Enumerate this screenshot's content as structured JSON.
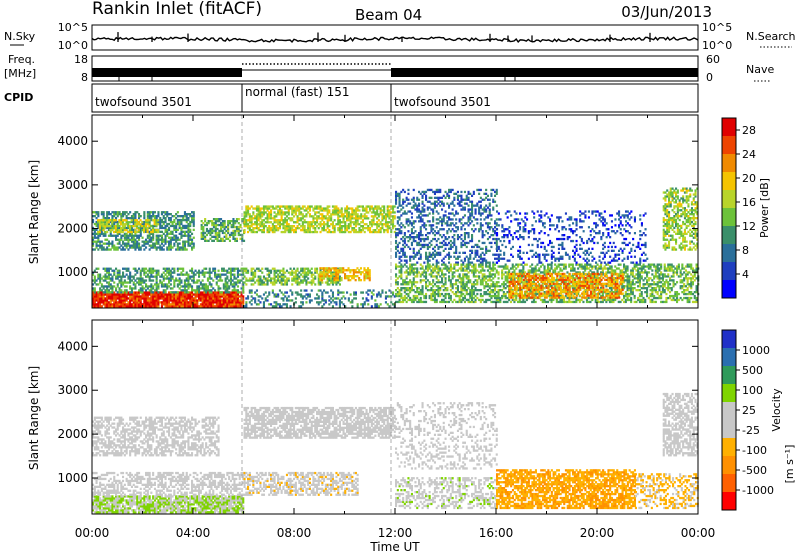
{
  "header": {
    "title": "Rankin Inlet (fitACF)",
    "beam": "Beam 04",
    "date": "03/Jun/2013"
  },
  "nsky_panel": {
    "label": "N.Sky",
    "left_ticks": [
      "10^5",
      "10^0"
    ],
    "right_label": "N.Search",
    "right_ticks": [
      "10^5",
      "10^0"
    ]
  },
  "freq_panel": {
    "label_line1": "Freq.",
    "label_line2": "[MHz]",
    "left_ticks": [
      "18",
      "8"
    ],
    "right_label": "Nave",
    "right_ticks": [
      "60",
      "0"
    ]
  },
  "cpid_panel": {
    "label": "CPID",
    "segments": [
      {
        "label": "twofsound 3501",
        "start_hour": 0,
        "end_hour": 6
      },
      {
        "label": "normal (fast) 151",
        "start_hour": 6,
        "end_hour": 12
      },
      {
        "label": "twofsound 3501",
        "start_hour": 12,
        "end_hour": 24
      }
    ]
  },
  "x_axis": {
    "label": "Time UT",
    "ticks": [
      "00:00",
      "04:00",
      "08:00",
      "12:00",
      "16:00",
      "20:00",
      "00:00"
    ],
    "tick_hours": [
      0,
      4,
      8,
      12,
      16,
      20,
      24
    ]
  },
  "chart_data": [
    {
      "type": "heatmap",
      "ylabel": "Slant Range [km]",
      "yticks": [
        1000,
        2000,
        3000,
        4000
      ],
      "ylim": [
        180,
        4600
      ],
      "xlim_hours": [
        0,
        24
      ],
      "colorbar_label": "Power [dB]",
      "colorbar_ticks": [
        "28",
        "24",
        "20",
        "16",
        "12",
        "8",
        "4"
      ],
      "colorbar_ticks_values": [
        28,
        24,
        20,
        16,
        12,
        8,
        4
      ],
      "colorbar_range": [
        0,
        30
      ],
      "colors": [
        "#0000ff",
        "#1f3fbf",
        "#2a6f9a",
        "#3a8f6a",
        "#6cc23a",
        "#b8d42a",
        "#f5c400",
        "#f08a00",
        "#ee4400",
        "#e00000"
      ],
      "echo_regions": [
        {
          "t0": 0.0,
          "t1": 6.0,
          "r0": 200,
          "r1": 520,
          "value": 27,
          "density": 0.95
        },
        {
          "t0": 0.0,
          "t1": 6.0,
          "r0": 520,
          "r1": 1100,
          "value": 11,
          "density": 0.55
        },
        {
          "t0": 0.0,
          "t1": 4.0,
          "r0": 1500,
          "r1": 2400,
          "value": 10,
          "density": 0.6
        },
        {
          "t0": 0.2,
          "t1": 2.6,
          "r0": 1900,
          "r1": 2200,
          "value": 17,
          "density": 0.6
        },
        {
          "t0": 4.3,
          "t1": 6.0,
          "r0": 1700,
          "r1": 2200,
          "value": 12,
          "density": 0.55
        },
        {
          "t0": 6.0,
          "t1": 9.8,
          "r0": 700,
          "r1": 1100,
          "value": 14,
          "density": 0.6
        },
        {
          "t0": 6.0,
          "t1": 12.0,
          "r0": 1900,
          "r1": 2500,
          "value": 16,
          "density": 0.65
        },
        {
          "t0": 6.0,
          "t1": 12.0,
          "r0": 200,
          "r1": 600,
          "value": 9,
          "density": 0.3
        },
        {
          "t0": 9.0,
          "t1": 11.0,
          "r0": 800,
          "r1": 1100,
          "value": 20,
          "density": 0.6
        },
        {
          "t0": 12.0,
          "t1": 16.0,
          "r0": 1200,
          "r1": 2900,
          "value": 7,
          "density": 0.35
        },
        {
          "t0": 12.0,
          "t1": 24.0,
          "r0": 300,
          "r1": 1200,
          "value": 13,
          "density": 0.55
        },
        {
          "t0": 16.5,
          "t1": 21.0,
          "r0": 400,
          "r1": 950,
          "value": 22,
          "density": 0.6
        },
        {
          "t0": 16.0,
          "t1": 22.0,
          "r0": 1200,
          "r1": 2400,
          "value": 5,
          "density": 0.22
        },
        {
          "t0": 22.6,
          "t1": 24.0,
          "r0": 1500,
          "r1": 2900,
          "value": 15,
          "density": 0.55
        }
      ]
    },
    {
      "type": "heatmap",
      "ylabel": "Slant Range [km]",
      "yticks": [
        1000,
        2000,
        3000,
        4000
      ],
      "ylim": [
        180,
        4600
      ],
      "xlim_hours": [
        0,
        24
      ],
      "colorbar_label": "Velocity",
      "colorbar_unit": "[m s⁻¹]",
      "colorbar_ticks": [
        "1000",
        "500",
        "100",
        "25",
        "-25",
        "-100",
        "-500",
        "-1000"
      ],
      "colorbar_ticks_values": [
        1000,
        500,
        100,
        25,
        -25,
        -100,
        -500,
        -1000
      ],
      "colorbar_range": [
        -1250,
        1250
      ],
      "colors": [
        "#ff0000",
        "#ff6000",
        "#ff9000",
        "#ffb000",
        "#c8c8c8",
        "#c8c8c8",
        "#7fd400",
        "#2f9a5a",
        "#2a6fb0",
        "#2030c8"
      ],
      "echo_regions": [
        {
          "t0": 0.0,
          "t1": 6.0,
          "r0": 200,
          "r1": 600,
          "value": 250,
          "density": 0.85
        },
        {
          "t0": 0.0,
          "t1": 6.0,
          "r0": 600,
          "r1": 1100,
          "value": 60,
          "density": 0.5
        },
        {
          "t0": 0.0,
          "t1": 5.0,
          "r0": 1500,
          "r1": 2400,
          "value": 0,
          "density": 0.55
        },
        {
          "t0": 6.0,
          "t1": 12.0,
          "r0": 1900,
          "r1": 2600,
          "value": 0,
          "density": 0.7
        },
        {
          "t0": 6.0,
          "t1": 10.5,
          "r0": 600,
          "r1": 1100,
          "value": -150,
          "density": 0.55
        },
        {
          "t0": 12.0,
          "t1": 16.0,
          "r0": 300,
          "r1": 1000,
          "value": 150,
          "density": 0.45
        },
        {
          "t0": 12.0,
          "t1": 16.0,
          "r0": 1200,
          "r1": 2700,
          "value": 0,
          "density": 0.25
        },
        {
          "t0": 16.0,
          "t1": 21.5,
          "r0": 300,
          "r1": 1200,
          "value": -450,
          "density": 0.7
        },
        {
          "t0": 21.5,
          "t1": 24.0,
          "r0": 300,
          "r1": 1100,
          "value": -300,
          "density": 0.45
        },
        {
          "t0": 22.6,
          "t1": 24.0,
          "r0": 1500,
          "r1": 2900,
          "value": 0,
          "density": 0.6
        }
      ]
    }
  ]
}
